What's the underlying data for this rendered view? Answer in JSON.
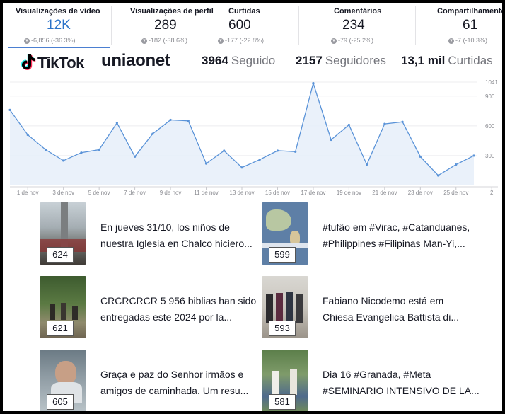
{
  "stats": [
    {
      "label": "Visualizações de vídeo",
      "value": "12K",
      "change": "-6,856 (-36.3%)",
      "accent": "#2a72c9"
    },
    {
      "label": "Visualizações de perfil",
      "value": "289",
      "change": "-182 (-38.6%)"
    },
    {
      "label": "Curtidas",
      "value": "600",
      "change": "-177 (-22.8%)"
    },
    {
      "label": "Comentários",
      "value": "234",
      "change": "-79 (-25.2%)"
    },
    {
      "label": "Compartilhamentos",
      "value": "61",
      "change": "-7 (-10.3%)"
    }
  ],
  "profile": {
    "brand": "TikTok",
    "username": "uniaonet",
    "following_count": "3964",
    "following_label": "Seguido",
    "followers_count": "2157",
    "followers_label": "Seguidores",
    "likes_count": "13,1 mil",
    "likes_label": "Curtidas"
  },
  "chart_data": {
    "type": "area",
    "x": [
      "31 out",
      "1 nov",
      "2 nov",
      "3 nov",
      "4 nov",
      "5 nov",
      "6 nov",
      "7 nov",
      "8 nov",
      "9 nov",
      "10 nov",
      "11 nov",
      "12 nov",
      "13 nov",
      "14 nov",
      "15 nov",
      "16 nov",
      "17 nov",
      "18 nov",
      "19 nov",
      "20 nov",
      "21 nov",
      "22 nov",
      "23 nov",
      "24 nov",
      "25 nov",
      "26 nov"
    ],
    "values": [
      760,
      510,
      360,
      250,
      330,
      360,
      630,
      290,
      520,
      660,
      650,
      220,
      350,
      180,
      260,
      350,
      340,
      1030,
      460,
      610,
      210,
      620,
      640,
      290,
      100,
      210,
      300
    ],
    "tick_labels": [
      "1 de nov",
      "3 de nov",
      "5 de nov",
      "7 de nov",
      "9 de nov",
      "11 de nov",
      "13 de nov",
      "15 de nov",
      "17 de nov",
      "19 de nov",
      "21 de nov",
      "23 de nov",
      "25 de nov",
      "2"
    ],
    "y_ticks": [
      "1041",
      "900",
      "600",
      "300"
    ],
    "y_tick_values": [
      1041,
      900,
      600,
      300
    ],
    "ylim": [
      0,
      1041
    ],
    "line_color": "#5a93d8",
    "fill_color": "#e6eef9",
    "grid": true
  },
  "videos": [
    {
      "views": "624",
      "title_line1": "En jueves 31/10, los niños de",
      "title_line2": "nuestra Iglesia en Chalco hiciero..."
    },
    {
      "views": "599",
      "title_line1": "#tufão em #Virac, #Catanduanes,",
      "title_line2": "#Philippines #Filipinas Man-Yi,..."
    },
    {
      "views": "621",
      "title_line1": "CRCRCRCR 5 956 biblias han sido",
      "title_line2": "entregadas este 2024 por la..."
    },
    {
      "views": "593",
      "title_line1": "Fabiano Nicodemo está em",
      "title_line2": "Chiesa Evangelica Battista di..."
    },
    {
      "views": "605",
      "title_line1": "Graça e paz do Senhor irmãos e",
      "title_line2": "amigos de caminhada. Um resu..."
    },
    {
      "views": "581",
      "title_line1": "Dia 16 #Granada, #Meta",
      "title_line2": "#SEMINARIO INTENSIVO DE LA..."
    }
  ]
}
